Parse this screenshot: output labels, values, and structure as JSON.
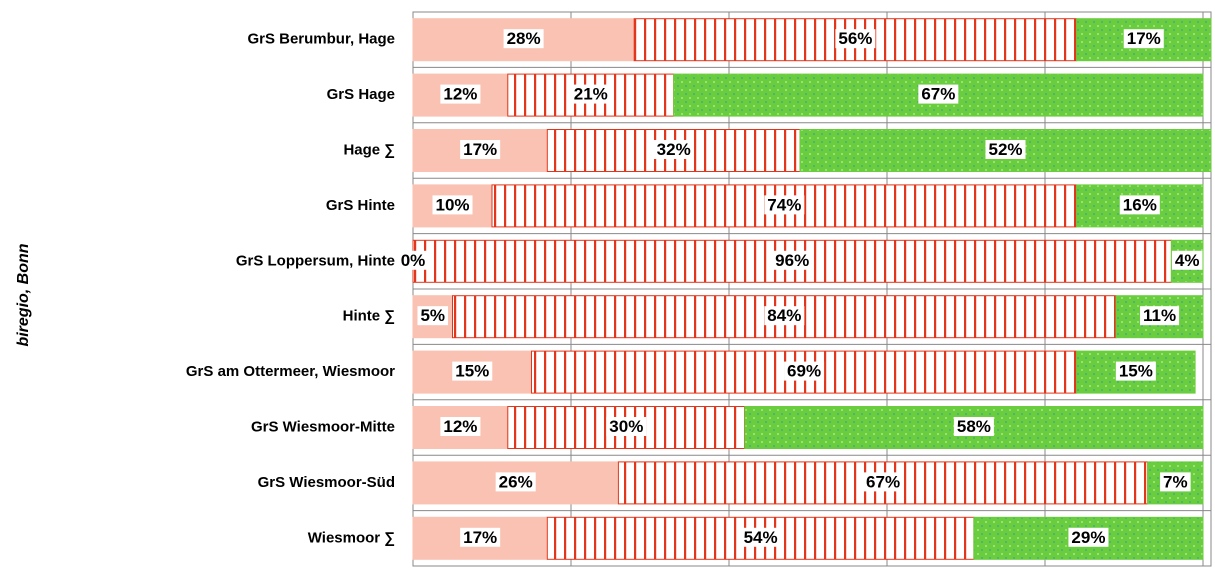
{
  "chart_data": {
    "type": "stacked-bar-horizontal",
    "y_label": "biregio, Bonn",
    "categories": [
      "GrS Berumbur, Hage",
      "GrS Hage",
      "Hage ∑",
      "GrS Hinte",
      "GrS Loppersum, Hinte",
      "Hinte ∑",
      "GrS am Ottermeer, Wiesmoor",
      "GrS Wiesmoor-Mitte",
      "GrS Wiesmoor-Süd",
      "Wiesmoor ∑"
    ],
    "series": [
      {
        "color": "#f9c2b2",
        "pattern": "solid",
        "values": [
          28,
          12,
          17,
          10,
          0,
          5,
          15,
          12,
          26,
          17
        ],
        "value_labels": [
          "28%",
          "12%",
          "17%",
          "10%",
          "0%",
          "5%",
          "15%",
          "12%",
          "26%",
          "17%"
        ]
      },
      {
        "color": "#e2361c",
        "pattern": "stripes",
        "values": [
          56,
          21,
          32,
          74,
          96,
          84,
          69,
          30,
          67,
          54
        ],
        "value_labels": [
          "56%",
          "21%",
          "32%",
          "74%",
          "96%",
          "84%",
          "69%",
          "30%",
          "67%",
          "54%"
        ]
      },
      {
        "color": "#6acd3e",
        "pattern": "dots",
        "values": [
          17,
          67,
          52,
          16,
          4,
          11,
          15,
          58,
          7,
          29
        ],
        "value_labels": [
          "17%",
          "67%",
          "52%",
          "16%",
          "4%",
          "11%",
          "15%",
          "58%",
          "7%",
          "29%"
        ]
      }
    ],
    "xlim": [
      0,
      100
    ],
    "xticks": [
      0,
      20,
      40,
      60,
      80,
      100
    ],
    "grid": true
  }
}
